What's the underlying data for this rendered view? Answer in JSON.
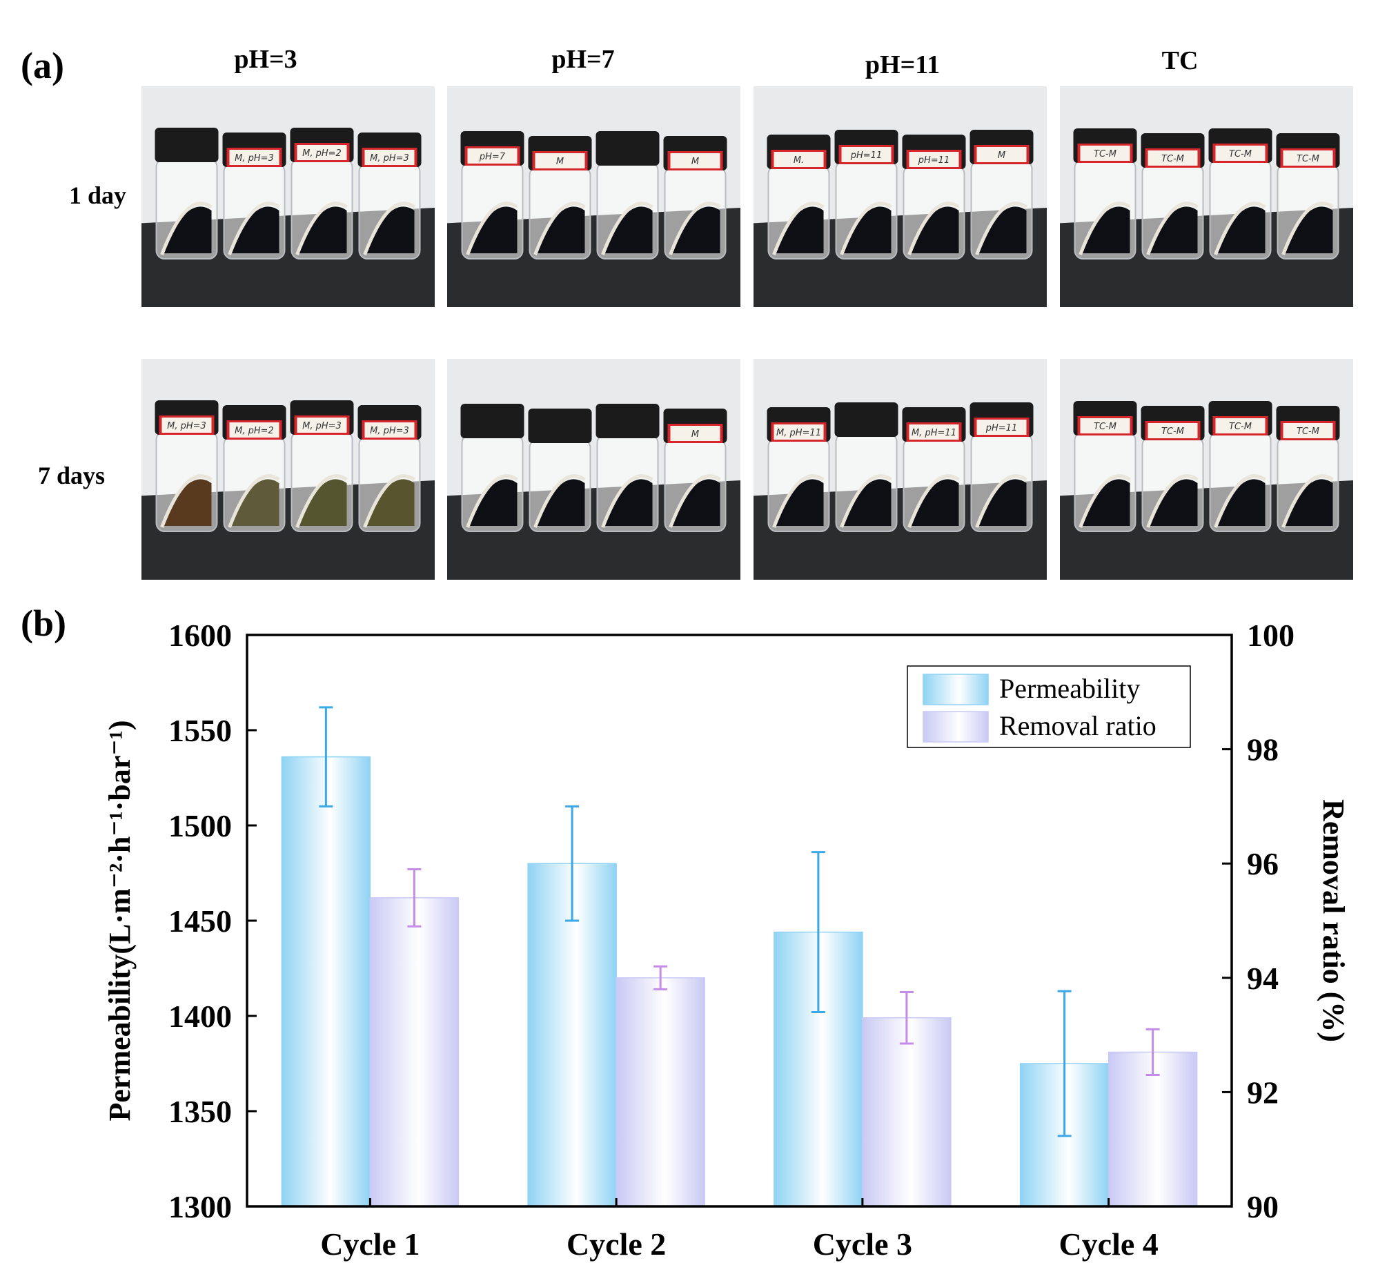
{
  "panel_a": {
    "label": "(a)",
    "columns": [
      "pH=3",
      "pH=7",
      "pH=11",
      "TC"
    ],
    "rows": [
      "1 day",
      "7 days"
    ],
    "vial_labels": {
      "day1": [
        [
          "",
          "M, pH=3",
          "M, pH=2",
          "M, pH=3"
        ],
        [
          "pH=7",
          "M",
          "",
          "M"
        ],
        [
          "M.",
          "pH=11",
          "pH=11",
          "M"
        ],
        [
          "TC-M",
          "TC-M",
          "TC-M",
          "TC-M"
        ]
      ],
      "day7": [
        [
          "M, pH=3",
          "M, pH=2",
          "M, pH=3",
          "M, pH=3"
        ],
        [
          "",
          "",
          "",
          "M"
        ],
        [
          "M, pH=11",
          "",
          "M, pH=11",
          "pH=11"
        ],
        [
          "TC-M",
          "TC-M",
          "TC-M",
          "TC-M"
        ]
      ]
    },
    "colors": {
      "background_wall": "#e8eaec",
      "table": "#2a2c2e",
      "cap": "#1b1b1b",
      "cap_red": "#d6252b",
      "membrane": "#0d0f14",
      "membrane_day7_ph3": [
        "#5a3a1e",
        "#5f5a3a",
        "#55552f",
        "#58542e"
      ]
    }
  },
  "panel_b": {
    "label": "(b)",
    "legend": [
      "Permeability",
      "Removal ratio"
    ]
  },
  "chart_data": {
    "type": "bar",
    "categories": [
      "Cycle 1",
      "Cycle 2",
      "Cycle 3",
      "Cycle 4"
    ],
    "series": [
      {
        "name": "Permeability",
        "axis": "left",
        "values": [
          1536,
          1480,
          1444,
          1375
        ],
        "errors": [
          26,
          30,
          42,
          38
        ],
        "color": "#8fd3f4",
        "error_color": "#3aa7e6"
      },
      {
        "name": "Removal ratio",
        "axis": "right",
        "values": [
          95.4,
          94.0,
          93.3,
          92.7
        ],
        "errors": [
          0.5,
          0.2,
          0.45,
          0.4
        ],
        "color": "#c9c9f5",
        "error_color": "#c58be8"
      }
    ],
    "ylabel": "Permeability(L·m⁻²·h⁻¹·bar⁻¹)",
    "y2label": "Removal ratio (%)",
    "ylim": [
      1300,
      1600
    ],
    "y2lim": [
      90,
      100
    ],
    "yticks": [
      "1300",
      "1350",
      "1400",
      "1450",
      "1500",
      "1550",
      "1600"
    ],
    "y2ticks": [
      "90",
      "92",
      "94",
      "96",
      "98",
      "100"
    ],
    "legend_position": "top-right",
    "grid": false
  }
}
